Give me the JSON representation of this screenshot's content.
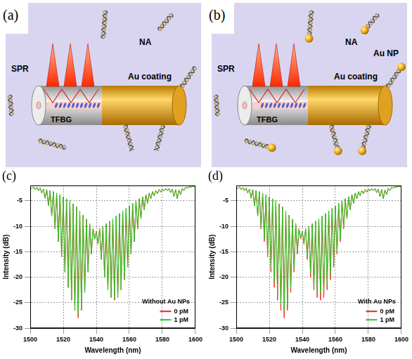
{
  "diagrams": [
    {
      "panel": "(a)",
      "labels": {
        "spr": "SPR",
        "na": "NA",
        "tfbg": "TFBG",
        "coating": "Au coating"
      }
    },
    {
      "panel": "(b)",
      "labels": {
        "spr": "SPR",
        "na": "NA",
        "np": "Au NP",
        "tfbg": "TFBG",
        "coating": "Au coating"
      }
    }
  ],
  "chart_data": [
    {
      "type": "line",
      "panel": "(c)",
      "annotation": "Without Au NPs",
      "x_label": "Wavelength (nm)",
      "y_label": "Intensity (dB)",
      "xlim": [
        1500,
        1600
      ],
      "xticks": [
        1500,
        1520,
        1540,
        1560,
        1580,
        1600
      ],
      "ylim": [
        -30,
        -2
      ],
      "yticks": [
        -30,
        -25,
        -20,
        -15,
        -10,
        -5
      ],
      "grid": true,
      "legend": "bottom right",
      "x": [
        1500,
        1501,
        1502,
        1503,
        1504,
        1505,
        1506,
        1507,
        1508,
        1509,
        1510,
        1511,
        1512,
        1513,
        1514,
        1515,
        1516,
        1517,
        1518,
        1519,
        1520,
        1521,
        1522,
        1523,
        1524,
        1525,
        1526,
        1527,
        1528,
        1529,
        1530,
        1531,
        1532,
        1533,
        1534,
        1535,
        1536,
        1537,
        1538,
        1539,
        1540,
        1541,
        1542,
        1543,
        1544,
        1545,
        1546,
        1547,
        1548,
        1549,
        1550,
        1551,
        1552,
        1553,
        1554,
        1555,
        1556,
        1557,
        1558,
        1559,
        1560,
        1561,
        1562,
        1563,
        1564,
        1565,
        1566,
        1567,
        1568,
        1569,
        1570,
        1571,
        1572,
        1573,
        1574,
        1575,
        1576,
        1577,
        1578,
        1579,
        1580,
        1581,
        1582,
        1583,
        1584,
        1585,
        1586,
        1587,
        1588,
        1589,
        1590,
        1591,
        1592,
        1593,
        1594,
        1595,
        1596,
        1597,
        1598,
        1599,
        1600
      ],
      "series": [
        {
          "name": "0 pM",
          "color": "#ff1f1f",
          "values": [
            -2.3,
            -2.6,
            -2.3,
            -2.8,
            -2.4,
            -3.0,
            -2.5,
            -3.5,
            -2.7,
            -4.5,
            -2.8,
            -6.0,
            -3.0,
            -8.0,
            -3.2,
            -10.5,
            -3.5,
            -13.0,
            -3.8,
            -16.0,
            -4.2,
            -19.0,
            -4.6,
            -22.0,
            -5.0,
            -24.5,
            -5.6,
            -26.5,
            -6.2,
            -28.0,
            -7.0,
            -26.5,
            -7.8,
            -23.0,
            -8.6,
            -19.0,
            -9.5,
            -15.5,
            -10.5,
            -12.5,
            -11.0,
            -13.5,
            -10.5,
            -16.5,
            -10.0,
            -20.0,
            -9.5,
            -22.5,
            -9.0,
            -24.0,
            -8.5,
            -24.5,
            -8.0,
            -24.0,
            -7.5,
            -22.5,
            -7.0,
            -20.5,
            -6.5,
            -18.0,
            -6.0,
            -15.5,
            -5.5,
            -13.0,
            -5.0,
            -10.5,
            -4.6,
            -8.5,
            -4.2,
            -6.8,
            -3.8,
            -5.5,
            -3.5,
            -4.6,
            -3.2,
            -4.0,
            -3.0,
            -3.6,
            -2.8,
            -3.3,
            -2.7,
            -3.1,
            -2.6,
            -3.0,
            -2.6,
            -3.4,
            -2.7,
            -4.2,
            -2.8,
            -4.6,
            -2.9,
            -3.8,
            -2.6,
            -3.0,
            -2.4,
            -2.5,
            -2.3,
            -2.3,
            -2.2,
            -2.2,
            -2.2
          ]
        },
        {
          "name": "1 pM",
          "color": "#22cc22",
          "values": [
            -2.3,
            -2.6,
            -2.3,
            -2.8,
            -2.4,
            -3.0,
            -2.5,
            -3.5,
            -2.7,
            -4.5,
            -2.8,
            -6.0,
            -3.0,
            -8.0,
            -3.2,
            -10.5,
            -3.5,
            -13.0,
            -3.8,
            -16.0,
            -4.2,
            -19.0,
            -4.6,
            -22.0,
            -5.0,
            -24.5,
            -5.6,
            -26.2,
            -6.2,
            -27.3,
            -7.0,
            -26.2,
            -7.8,
            -23.0,
            -8.6,
            -19.0,
            -9.5,
            -15.5,
            -10.5,
            -12.5,
            -11.0,
            -13.5,
            -10.5,
            -16.5,
            -10.0,
            -20.0,
            -9.5,
            -22.5,
            -9.0,
            -23.8,
            -8.5,
            -24.2,
            -8.0,
            -24.0,
            -7.5,
            -22.5,
            -7.0,
            -20.5,
            -6.5,
            -18.0,
            -6.0,
            -15.5,
            -5.5,
            -13.0,
            -5.0,
            -10.5,
            -4.6,
            -8.5,
            -4.2,
            -6.8,
            -3.8,
            -5.5,
            -3.5,
            -4.6,
            -3.2,
            -4.0,
            -3.0,
            -3.6,
            -2.8,
            -3.3,
            -2.7,
            -3.1,
            -2.6,
            -3.0,
            -2.6,
            -3.4,
            -2.7,
            -4.2,
            -2.8,
            -4.6,
            -2.9,
            -3.8,
            -2.6,
            -3.0,
            -2.4,
            -2.5,
            -2.3,
            -2.3,
            -2.2,
            -2.2,
            -2.2
          ]
        }
      ]
    },
    {
      "type": "line",
      "panel": "(d)",
      "annotation": "With Au NPs",
      "x_label": "Wavelength (nm)",
      "y_label": "Intensity (dB)",
      "xlim": [
        1500,
        1600
      ],
      "xticks": [
        1500,
        1520,
        1540,
        1560,
        1580,
        1600
      ],
      "ylim": [
        -30,
        -2
      ],
      "yticks": [
        -30,
        -25,
        -20,
        -15,
        -10,
        -5
      ],
      "grid": true,
      "legend": "bottom right",
      "x": [
        1500,
        1501,
        1502,
        1503,
        1504,
        1505,
        1506,
        1507,
        1508,
        1509,
        1510,
        1511,
        1512,
        1513,
        1514,
        1515,
        1516,
        1517,
        1518,
        1519,
        1520,
        1521,
        1522,
        1523,
        1524,
        1525,
        1526,
        1527,
        1528,
        1529,
        1530,
        1531,
        1532,
        1533,
        1534,
        1535,
        1536,
        1537,
        1538,
        1539,
        1540,
        1541,
        1542,
        1543,
        1544,
        1545,
        1546,
        1547,
        1548,
        1549,
        1550,
        1551,
        1552,
        1553,
        1554,
        1555,
        1556,
        1557,
        1558,
        1559,
        1560,
        1561,
        1562,
        1563,
        1564,
        1565,
        1566,
        1567,
        1568,
        1569,
        1570,
        1571,
        1572,
        1573,
        1574,
        1575,
        1576,
        1577,
        1578,
        1579,
        1580,
        1581,
        1582,
        1583,
        1584,
        1585,
        1586,
        1587,
        1588,
        1589,
        1590,
        1591,
        1592,
        1593,
        1594,
        1595,
        1596,
        1597,
        1598,
        1599,
        1600
      ],
      "series": [
        {
          "name": "0 pM",
          "color": "#ff1f1f",
          "values": [
            -2.3,
            -2.6,
            -2.3,
            -2.8,
            -2.4,
            -3.0,
            -2.5,
            -3.5,
            -2.7,
            -4.5,
            -2.8,
            -6.0,
            -3.0,
            -8.0,
            -3.2,
            -10.5,
            -3.5,
            -13.0,
            -3.8,
            -16.0,
            -4.2,
            -19.0,
            -4.6,
            -22.0,
            -5.0,
            -24.5,
            -5.6,
            -26.5,
            -6.2,
            -28.0,
            -7.0,
            -26.5,
            -7.8,
            -23.0,
            -8.6,
            -19.0,
            -9.5,
            -15.5,
            -10.5,
            -12.5,
            -11.0,
            -13.5,
            -10.5,
            -16.5,
            -10.0,
            -20.0,
            -9.5,
            -22.5,
            -9.0,
            -24.0,
            -8.5,
            -24.5,
            -8.0,
            -24.0,
            -7.5,
            -22.5,
            -7.0,
            -20.5,
            -6.5,
            -18.0,
            -6.0,
            -15.5,
            -5.5,
            -13.0,
            -5.0,
            -10.5,
            -4.6,
            -8.5,
            -4.2,
            -6.8,
            -3.8,
            -5.5,
            -3.5,
            -4.6,
            -3.2,
            -4.0,
            -3.0,
            -3.6,
            -2.8,
            -3.3,
            -2.7,
            -3.1,
            -2.6,
            -3.0,
            -2.6,
            -3.4,
            -2.7,
            -4.2,
            -2.8,
            -4.6,
            -2.9,
            -3.8,
            -2.6,
            -3.0,
            -2.4,
            -2.5,
            -2.3,
            -2.3,
            -2.2,
            -2.2,
            -2.2
          ]
        },
        {
          "name": "1 pM",
          "color": "#22cc22",
          "values": [
            -2.3,
            -2.6,
            -2.3,
            -2.8,
            -2.4,
            -3.0,
            -2.5,
            -3.5,
            -2.7,
            -4.5,
            -2.8,
            -6.0,
            -3.0,
            -8.0,
            -3.2,
            -10.3,
            -3.5,
            -12.6,
            -3.8,
            -15.3,
            -4.2,
            -18.2,
            -4.6,
            -21.0,
            -5.0,
            -23.5,
            -5.6,
            -25.3,
            -6.2,
            -26.6,
            -7.0,
            -25.3,
            -7.8,
            -22.0,
            -8.6,
            -18.3,
            -9.5,
            -15.0,
            -10.5,
            -12.3,
            -11.0,
            -13.2,
            -10.5,
            -16.0,
            -10.0,
            -19.2,
            -9.5,
            -21.5,
            -9.0,
            -22.9,
            -8.5,
            -23.2,
            -8.0,
            -22.8,
            -7.5,
            -21.4,
            -7.0,
            -19.5,
            -6.5,
            -17.2,
            -6.0,
            -15.0,
            -5.5,
            -12.7,
            -5.0,
            -10.3,
            -4.6,
            -8.5,
            -4.2,
            -6.8,
            -3.8,
            -5.5,
            -3.5,
            -4.6,
            -3.2,
            -4.0,
            -3.0,
            -3.6,
            -2.8,
            -3.3,
            -2.7,
            -3.1,
            -2.6,
            -3.0,
            -2.6,
            -3.4,
            -2.7,
            -4.2,
            -2.8,
            -4.6,
            -2.9,
            -3.8,
            -2.6,
            -3.0,
            -2.4,
            -2.5,
            -2.3,
            -2.3,
            -2.2,
            -2.2,
            -2.2
          ]
        }
      ]
    }
  ]
}
